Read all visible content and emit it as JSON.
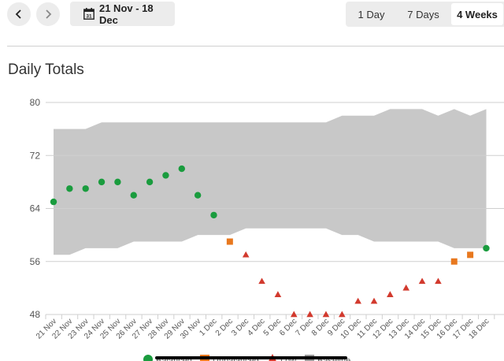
{
  "toolbar": {
    "prev_icon": "chevron-left-icon",
    "next_icon": "chevron-right-icon",
    "calendar_icon": "calendar-icon",
    "calendar_day": "31",
    "date_range": "21 Nov - 18 Dec",
    "ranges": [
      {
        "label": "1 Day",
        "selected": false
      },
      {
        "label": "7 Days",
        "selected": false
      },
      {
        "label": "4 Weeks",
        "selected": true
      }
    ]
  },
  "section_title": "Daily Totals",
  "colors": {
    "balanced": "#1a9c3e",
    "unbalanced": "#e8781e",
    "low": "#d23a2e",
    "baseline": "#c8c8c8",
    "grid": "#cfcfcf"
  },
  "chart_data": {
    "type": "scatter",
    "title": "Daily Totals",
    "xlabel": "",
    "ylabel": "",
    "ylim": [
      48,
      80
    ],
    "yticks": [
      48,
      56,
      64,
      72,
      80
    ],
    "grid": true,
    "legend_position": "bottom",
    "categories": [
      "21 Nov",
      "22 Nov",
      "23 Nov",
      "24 Nov",
      "25 Nov",
      "26 Nov",
      "27 Nov",
      "28 Nov",
      "29 Nov",
      "30 Nov",
      "1 Dec",
      "2 Dec",
      "3 Dec",
      "4 Dec",
      "5 Dec",
      "6 Dec",
      "7 Dec",
      "8 Dec",
      "9 Dec",
      "10 Dec",
      "11 Dec",
      "12 Dec",
      "13 Dec",
      "14 Dec",
      "15 Dec",
      "16 Dec",
      "17 Dec",
      "18 Dec"
    ],
    "baseline": {
      "name": "Baseline",
      "upper": [
        76,
        76,
        76,
        77,
        77,
        77,
        77,
        77,
        77,
        77,
        77,
        77,
        77,
        77,
        77,
        77,
        77,
        77,
        78,
        78,
        78,
        79,
        79,
        79,
        78,
        79,
        78,
        79
      ],
      "lower": [
        57,
        57,
        58,
        58,
        58,
        59,
        59,
        59,
        59,
        60,
        60,
        60,
        61,
        61,
        61,
        61,
        61,
        61,
        60,
        60,
        59,
        59,
        59,
        59,
        59,
        58,
        58,
        58
      ]
    },
    "series": [
      {
        "name": "Balanced",
        "marker": "circle",
        "values": [
          65,
          67,
          67,
          68,
          68,
          66,
          68,
          69,
          70,
          66,
          63,
          null,
          null,
          null,
          null,
          null,
          null,
          null,
          null,
          null,
          null,
          null,
          null,
          null,
          null,
          null,
          null,
          58
        ]
      },
      {
        "name": "Unbalanced",
        "marker": "square",
        "values": [
          null,
          null,
          null,
          null,
          null,
          null,
          null,
          null,
          null,
          null,
          null,
          59,
          null,
          null,
          null,
          null,
          null,
          null,
          null,
          null,
          null,
          null,
          null,
          null,
          null,
          56,
          57,
          null
        ]
      },
      {
        "name": "Low",
        "marker": "triangle",
        "values": [
          null,
          null,
          null,
          null,
          null,
          null,
          null,
          null,
          null,
          null,
          null,
          null,
          57,
          53,
          51,
          48,
          48,
          48,
          48,
          50,
          50,
          51,
          52,
          53,
          53,
          null,
          null,
          null
        ]
      }
    ]
  }
}
